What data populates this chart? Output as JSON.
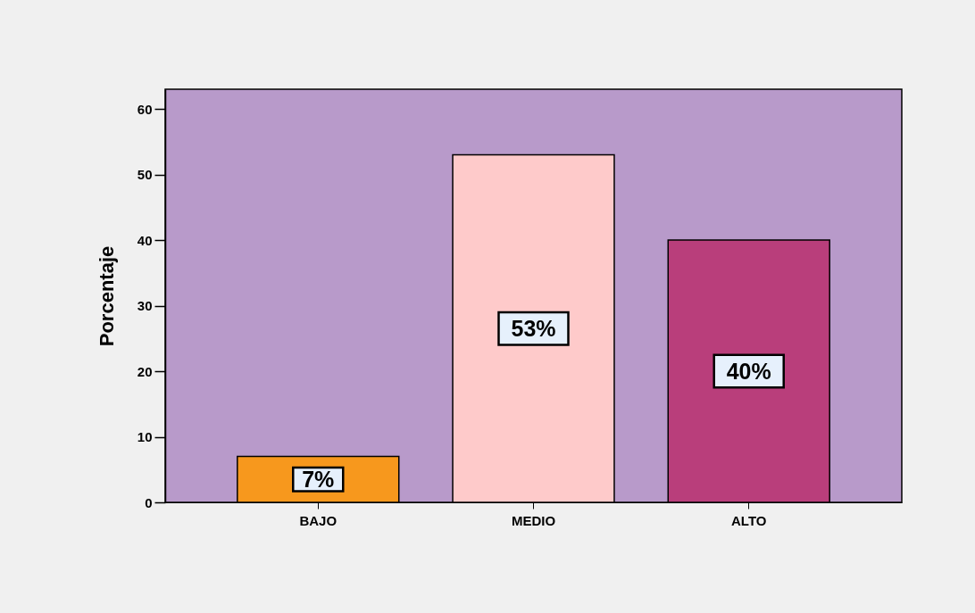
{
  "chart_data": {
    "type": "bar",
    "ylabel": "Porcentaje",
    "categories": [
      "BAJO",
      "MEDIO",
      "ALTO"
    ],
    "values": [
      7,
      53,
      40
    ],
    "colors": [
      "#f7981d",
      "#fecaca",
      "#b93e7b"
    ],
    "value_labels": [
      "7%",
      "53%",
      "40%"
    ],
    "ylim": [
      0,
      63
    ],
    "yticks": [
      0,
      10,
      20,
      30,
      40,
      50,
      60
    ]
  }
}
